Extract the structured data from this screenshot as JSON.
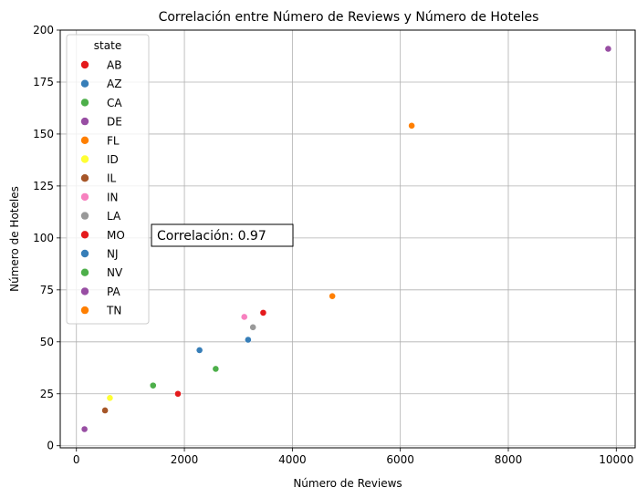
{
  "chart_data": {
    "type": "scatter",
    "title": "Correlación entre Número de Reviews y Número de Hoteles",
    "xlabel": "Número de Reviews",
    "ylabel": "Número de Hoteles",
    "xlim": [
      -300,
      10350
    ],
    "ylim": [
      -1,
      200
    ],
    "xticks": [
      0,
      2000,
      4000,
      6000,
      8000,
      10000
    ],
    "yticks": [
      0,
      25,
      50,
      75,
      100,
      125,
      150,
      175,
      200
    ],
    "grid": true,
    "legend": {
      "title": "state",
      "placement": "top-left"
    },
    "annotation": {
      "text": "Correlación: 0.97",
      "x": 1500,
      "y": 100
    },
    "series": [
      {
        "name": "AB",
        "color": "#e41a1c",
        "points": [
          [
            1880,
            25
          ]
        ]
      },
      {
        "name": "AZ",
        "color": "#377eb8",
        "points": [
          [
            2280,
            46
          ]
        ]
      },
      {
        "name": "CA",
        "color": "#4daf4a",
        "points": [
          [
            1420,
            29
          ]
        ]
      },
      {
        "name": "DE",
        "color": "#984ea3",
        "points": [
          [
            150,
            8
          ]
        ]
      },
      {
        "name": "FL",
        "color": "#ff7f00",
        "points": [
          [
            4740,
            72
          ]
        ]
      },
      {
        "name": "ID",
        "color": "#ffff33",
        "points": [
          [
            620,
            23
          ]
        ]
      },
      {
        "name": "IL",
        "color": "#a65628",
        "points": [
          [
            530,
            17
          ]
        ]
      },
      {
        "name": "IN",
        "color": "#f781bf",
        "points": [
          [
            3110,
            62
          ]
        ]
      },
      {
        "name": "LA",
        "color": "#999999",
        "points": [
          [
            3270,
            57
          ]
        ]
      },
      {
        "name": "MO",
        "color": "#e41a1c",
        "points": [
          [
            3460,
            64
          ]
        ]
      },
      {
        "name": "NJ",
        "color": "#377eb8",
        "points": [
          [
            3180,
            51
          ]
        ]
      },
      {
        "name": "NV",
        "color": "#4daf4a",
        "points": [
          [
            2580,
            37
          ]
        ]
      },
      {
        "name": "PA",
        "color": "#984ea3",
        "points": [
          [
            9850,
            191
          ]
        ]
      },
      {
        "name": "TN",
        "color": "#ff7f00",
        "points": [
          [
            6210,
            154
          ]
        ]
      }
    ]
  }
}
